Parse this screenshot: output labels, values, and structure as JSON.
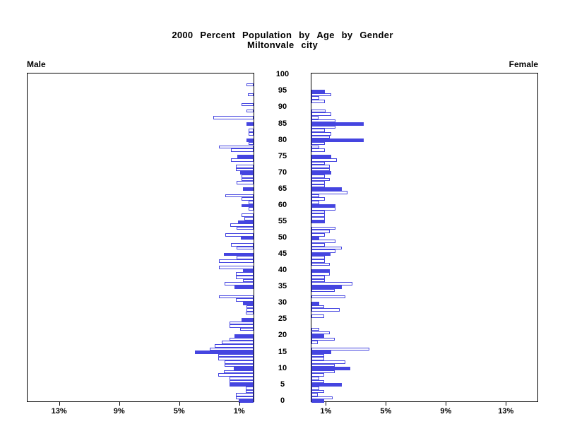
{
  "title": {
    "line1": "2000 Percent Population by Age by Gender",
    "line2": "Miltonvale city"
  },
  "panel_labels": {
    "male": "Male",
    "female": "Female"
  },
  "colors": {
    "bar_blue": "#4545e0",
    "bar_outline_blue": "#4545e0",
    "axis_black": "#000000",
    "background": "#ffffff"
  },
  "chart_data": {
    "type": "bar",
    "subtype": "population-pyramid",
    "title": "2000 Percent Population by Age by Gender - Miltonvale city",
    "age_min": 0,
    "age_max": 100,
    "age_tick_interval": 5,
    "age_tick_labels": [
      "0",
      "5",
      "10",
      "15",
      "20",
      "25",
      "30",
      "35",
      "40",
      "45",
      "50",
      "55",
      "60",
      "65",
      "70",
      "75",
      "80",
      "85",
      "90",
      "95",
      "100"
    ],
    "pct_axis_max": 15.15,
    "pct_tick_values": [
      1,
      5,
      9,
      13
    ],
    "pct_tick_labels_male": [
      "13%",
      "9%",
      "5%",
      "1%"
    ],
    "pct_tick_labels_female": [
      "1%",
      "5%",
      "9%",
      "13%"
    ],
    "legend": "bars for ages divisible by 5 are solid blue; other ages are white with blue outline",
    "series": [
      {
        "name": "Male",
        "orientation": "left",
        "pct_by_age": [
          1.0,
          1.2,
          1.2,
          0.5,
          0.5,
          1.6,
          1.6,
          1.6,
          2.35,
          2.0,
          1.3,
          1.95,
          1.95,
          2.35,
          2.35,
          3.9,
          2.9,
          2.6,
          2.1,
          1.6,
          1.25,
          0,
          0.9,
          1.6,
          1.6,
          0.8,
          0,
          0.5,
          0.45,
          0.45,
          0.7,
          1.2,
          2.3,
          0,
          0,
          1.25,
          1.95,
          0.7,
          1.2,
          1.2,
          0.7,
          2.3,
          0,
          2.3,
          1.15,
          2.0,
          0,
          1.15,
          1.5,
          0,
          0.85,
          1.9,
          0,
          1.15,
          1.55,
          1.05,
          0.6,
          0.8,
          0,
          0.35,
          0.8,
          0.35,
          0.8,
          1.9,
          0,
          0.7,
          0,
          1.15,
          0.8,
          0.8,
          0.9,
          1.2,
          1.2,
          0,
          1.5,
          1.1,
          0,
          1.5,
          2.3,
          0.35,
          0.45,
          0,
          0.35,
          0.35,
          0,
          0.45,
          0,
          2.7,
          0,
          0.45,
          0,
          0.8,
          0,
          0,
          0.4,
          0,
          0,
          0.45,
          0,
          0,
          0
        ]
      },
      {
        "name": "Female",
        "orientation": "right",
        "pct_by_age": [
          0.85,
          1.4,
          0.4,
          0.85,
          0.5,
          2.0,
          0.85,
          0.5,
          0.85,
          1.55,
          2.6,
          1.55,
          2.25,
          0.85,
          0.85,
          1.3,
          3.85,
          0,
          0.4,
          1.55,
          0.85,
          1.2,
          0.5,
          0,
          0,
          0,
          0.85,
          0,
          1.9,
          0.85,
          0.5,
          0,
          2.25,
          0,
          1.55,
          2.0,
          2.75,
          0.9,
          0.9,
          1.2,
          1.2,
          0,
          1.2,
          0.9,
          0.9,
          1.25,
          1.6,
          2.0,
          0.9,
          1.6,
          0.5,
          0.9,
          1.2,
          1.6,
          0,
          0.9,
          0.9,
          0.9,
          0.9,
          1.6,
          1.6,
          0.5,
          0.9,
          0.5,
          2.4,
          2.0,
          0.9,
          0.9,
          1.2,
          0.9,
          1.3,
          1.2,
          1.2,
          0.9,
          1.7,
          1.3,
          0,
          0.9,
          0.5,
          0.9,
          3.5,
          1.2,
          1.3,
          0.9,
          1.6,
          3.5,
          1.6,
          0.45,
          1.3,
          0.95,
          0,
          0,
          0.9,
          0.5,
          1.3,
          0.9,
          0,
          0,
          0,
          0,
          0
        ]
      }
    ]
  }
}
